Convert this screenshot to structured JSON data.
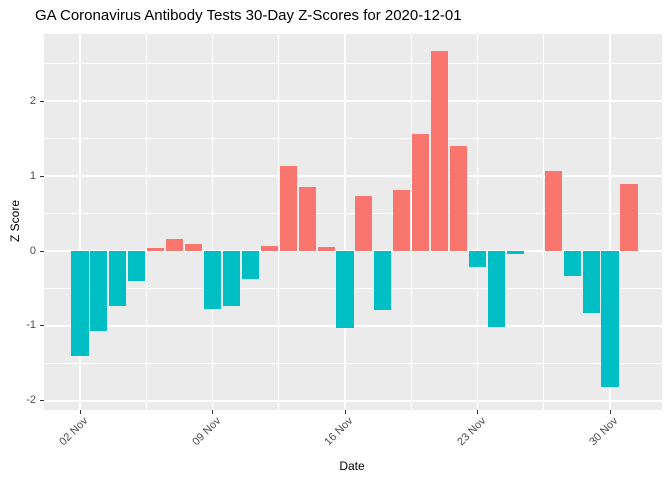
{
  "chart_data": {
    "type": "bar",
    "title": "GA Coronavirus Antibody Tests 30-Day Z-Scores for 2020-12-01",
    "xlabel": "Date",
    "ylabel": "Z Score",
    "legend": "none",
    "grid": "on",
    "ylim": [
      -2.12,
      2.91
    ],
    "y_ticks": [
      2,
      1,
      0,
      -1,
      -2
    ],
    "y_tick_labels": [
      "2",
      "1",
      "0",
      "-1",
      "-2"
    ],
    "y_minor": [
      2.5,
      1.5,
      0.5,
      -0.5,
      -1.5
    ],
    "x_tick_days": [
      0,
      7,
      14,
      21,
      28
    ],
    "x_tick_labels": [
      "02 Nov",
      "09 Nov",
      "16 Nov",
      "23 Nov",
      "30 Nov"
    ],
    "x_minor_days": [
      3.5,
      10.5,
      17.5,
      24.5
    ],
    "colors": {
      "positive": "#F8766D",
      "negative": "#00BFC4",
      "panel_bg": "#EBEBEB",
      "grid": "#FFFFFF",
      "axis_text": "#4D4D4D",
      "tick_mark": "#333333",
      "title_text": "#000000"
    },
    "bars": [
      {
        "date": "02 Nov",
        "day": 0,
        "z": -1.4
      },
      {
        "date": "03 Nov",
        "day": 1,
        "z": -1.07
      },
      {
        "date": "04 Nov",
        "day": 2,
        "z": -0.73
      },
      {
        "date": "05 Nov",
        "day": 3,
        "z": -0.4
      },
      {
        "date": "06 Nov",
        "day": 4,
        "z": 0.04
      },
      {
        "date": "07 Nov",
        "day": 5,
        "z": 0.16
      },
      {
        "date": "08 Nov",
        "day": 6,
        "z": 0.09
      },
      {
        "date": "09 Nov",
        "day": 7,
        "z": -0.77
      },
      {
        "date": "10 Nov",
        "day": 8,
        "z": -0.74
      },
      {
        "date": "11 Nov",
        "day": 9,
        "z": -0.37
      },
      {
        "date": "12 Nov",
        "day": 10,
        "z": 0.07
      },
      {
        "date": "13 Nov",
        "day": 11,
        "z": 1.14
      },
      {
        "date": "14 Nov",
        "day": 12,
        "z": 0.86
      },
      {
        "date": "15 Nov",
        "day": 13,
        "z": 0.05
      },
      {
        "date": "16 Nov",
        "day": 14,
        "z": -1.03
      },
      {
        "date": "17 Nov",
        "day": 15,
        "z": 0.73
      },
      {
        "date": "18 Nov",
        "day": 16,
        "z": -0.79
      },
      {
        "date": "19 Nov",
        "day": 17,
        "z": 0.81
      },
      {
        "date": "20 Nov",
        "day": 18,
        "z": 1.56
      },
      {
        "date": "21 Nov",
        "day": 19,
        "z": 2.67
      },
      {
        "date": "22 Nov",
        "day": 20,
        "z": 1.4
      },
      {
        "date": "23 Nov",
        "day": 21,
        "z": -0.22
      },
      {
        "date": "24 Nov",
        "day": 22,
        "z": -1.02
      },
      {
        "date": "25 Nov",
        "day": 23,
        "z": -0.04
      },
      {
        "date": "27 Nov",
        "day": 25,
        "z": 1.07
      },
      {
        "date": "28 Nov",
        "day": 26,
        "z": -0.33
      },
      {
        "date": "29 Nov",
        "day": 27,
        "z": -0.83
      },
      {
        "date": "30 Nov",
        "day": 28,
        "z": -1.82
      },
      {
        "date": "01 Dec",
        "day": 29,
        "z": 0.9
      }
    ]
  }
}
